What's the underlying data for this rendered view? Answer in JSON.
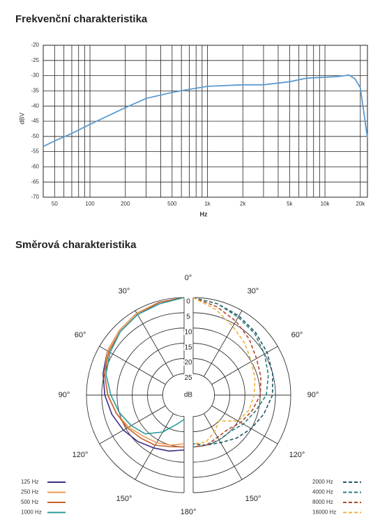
{
  "chart_data": [
    {
      "type": "line",
      "title": "Frekvenční charakteristika",
      "xlabel": "Hz",
      "ylabel": "dBV",
      "log_x": true,
      "grid": true,
      "color": "#5b9bd0",
      "x": [
        40,
        50,
        70,
        100,
        200,
        300,
        500,
        700,
        1000,
        2000,
        3000,
        5000,
        7000,
        10000,
        13000,
        16000,
        18000,
        20000,
        23000
      ],
      "values": [
        -53.3,
        -51.5,
        -49,
        -46,
        -40.5,
        -37.5,
        -35.5,
        -34.5,
        -33.5,
        -33,
        -33,
        -32,
        -30.8,
        -30.5,
        -30.3,
        -29.8,
        -31,
        -34,
        -50.5
      ],
      "xlim": [
        40,
        23000
      ],
      "xticks": [
        50,
        100,
        200,
        500,
        {
          "value": 1000,
          "label": "1k"
        },
        {
          "value": 2000,
          "label": "2k"
        },
        {
          "value": 5000,
          "label": "5k"
        },
        {
          "value": 10000,
          "label": "10k"
        },
        {
          "value": 20000,
          "label": "20k"
        }
      ],
      "x_minor_grid": [
        60,
        70,
        80,
        90,
        300,
        400,
        600,
        700,
        800,
        900,
        3000,
        4000,
        6000,
        7000,
        8000,
        9000
      ],
      "ylim": [
        -70,
        -20
      ],
      "yticks": [
        -20,
        -25,
        -30,
        -35,
        -40,
        -45,
        -50,
        -55,
        -60,
        -65,
        -70
      ]
    },
    {
      "type": "polar",
      "title": "Směrová charakteristika",
      "r_label": "dB",
      "angles": [
        0,
        15,
        30,
        45,
        60,
        75,
        90,
        105,
        120,
        135,
        150,
        165,
        180
      ],
      "rlim": [
        0,
        32
      ],
      "r_ticks": [
        0,
        5,
        10,
        15,
        20,
        25
      ],
      "theta_ticks": [
        {
          "value": 0,
          "label": "0°"
        },
        {
          "value": 30,
          "label": "30°"
        },
        {
          "value": 60,
          "label": "60°"
        },
        {
          "value": 90,
          "label": "90°"
        },
        {
          "value": 120,
          "label": "120°"
        },
        {
          "value": 150,
          "label": "150°"
        },
        {
          "value": 180,
          "label": "180°"
        }
      ],
      "series": [
        {
          "name": "125 Hz",
          "color": "#3b2f86",
          "side": "left",
          "line_style": "solid",
          "values": [
            0,
            0.5,
            1,
            2,
            3,
            4.5,
            6,
            7.5,
            9,
            10.5,
            12,
            13,
            14
          ]
        },
        {
          "name": "250 Hz",
          "color": "#ee9a50",
          "side": "left",
          "line_style": "solid",
          "values": [
            0,
            0.5,
            1,
            2,
            3,
            5,
            7,
            9,
            11,
            13,
            14,
            15,
            16
          ]
        },
        {
          "name": "500 Hz",
          "color": "#c8602a",
          "side": "left",
          "line_style": "solid",
          "values": [
            0,
            0.5,
            1.5,
            2.5,
            3.5,
            5,
            7,
            9,
            10.5,
            12,
            13,
            14.5,
            15
          ]
        },
        {
          "name": "1000 Hz",
          "color": "#2a9a9a",
          "side": "left",
          "line_style": "solid",
          "values": [
            0,
            1,
            1.5,
            2.5,
            4,
            5.5,
            8,
            10,
            12,
            14,
            18,
            22,
            24
          ]
        },
        {
          "name": "2000 Hz",
          "color": "#1f5566",
          "side": "right",
          "line_style": "dashed",
          "values": [
            0,
            1,
            2,
            3,
            4,
            5,
            6,
            8,
            10,
            12,
            14,
            15,
            16
          ]
        },
        {
          "name": "4000 Hz",
          "color": "#2b7a7a",
          "side": "right",
          "line_style": "dashed",
          "values": [
            0,
            1,
            2.5,
            3.5,
            5,
            6.5,
            8,
            11,
            13,
            15,
            15,
            15,
            15
          ]
        },
        {
          "name": "8000 Hz",
          "color": "#b5442a",
          "side": "right",
          "line_style": "dashed",
          "values": [
            0,
            2,
            4,
            6,
            8,
            9,
            10,
            12,
            14,
            16,
            16,
            15,
            15
          ]
        },
        {
          "name": "16000 Hz",
          "color": "#f0b040",
          "side": "right",
          "line_style": "dashed",
          "values": [
            0,
            3,
            6,
            8,
            10,
            11,
            12,
            13,
            15,
            20,
            18,
            16,
            16
          ]
        }
      ]
    }
  ]
}
